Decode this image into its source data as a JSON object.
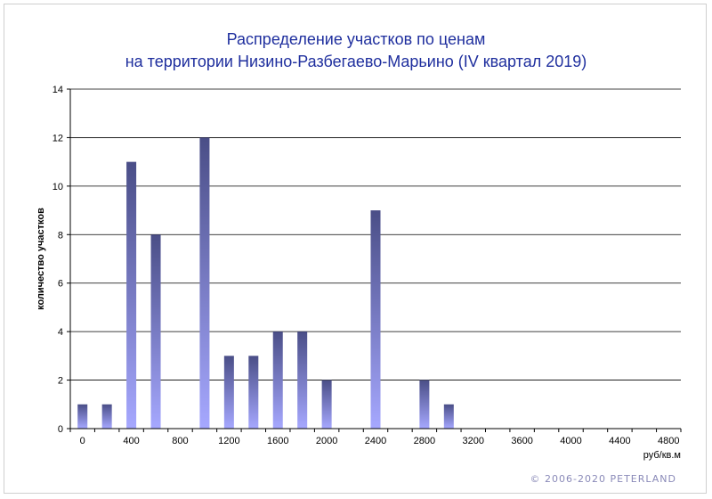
{
  "chart_data": {
    "type": "bar",
    "title": "Распределение  участков по ценам",
    "subtitle": "на территории Низино-Разбегаево-Марьино (IV квартал 2019)",
    "ylabel": "количество участков",
    "xlabel": "руб/кв.м",
    "ylim": [
      0,
      14
    ],
    "yticks": [
      "0",
      "2",
      "4",
      "6",
      "8",
      "10",
      "12",
      "14"
    ],
    "xtick_labels": [
      "0",
      "400",
      "800",
      "1200",
      "1600",
      "2000",
      "2400",
      "2800",
      "3200",
      "3600",
      "4000",
      "4400",
      "4800"
    ],
    "categories": [
      "0",
      "200",
      "400",
      "600",
      "800",
      "1000",
      "1200",
      "1400",
      "1600",
      "1800",
      "2000",
      "2200",
      "2400",
      "2600",
      "2800",
      "3000",
      "3200",
      "3400",
      "3600",
      "3800",
      "4000",
      "4200",
      "4400",
      "4600",
      "4800"
    ],
    "values": [
      1,
      1,
      11,
      8,
      0,
      12,
      3,
      3,
      4,
      4,
      2,
      0,
      9,
      0,
      2,
      1,
      0,
      0,
      0,
      0,
      0,
      0,
      0,
      0,
      0
    ],
    "grid": true,
    "bar_color_top": "#4a4e87",
    "bar_color_bottom": "#a6a8ff"
  },
  "copyright": "© 2006-2020  PETERLAND"
}
